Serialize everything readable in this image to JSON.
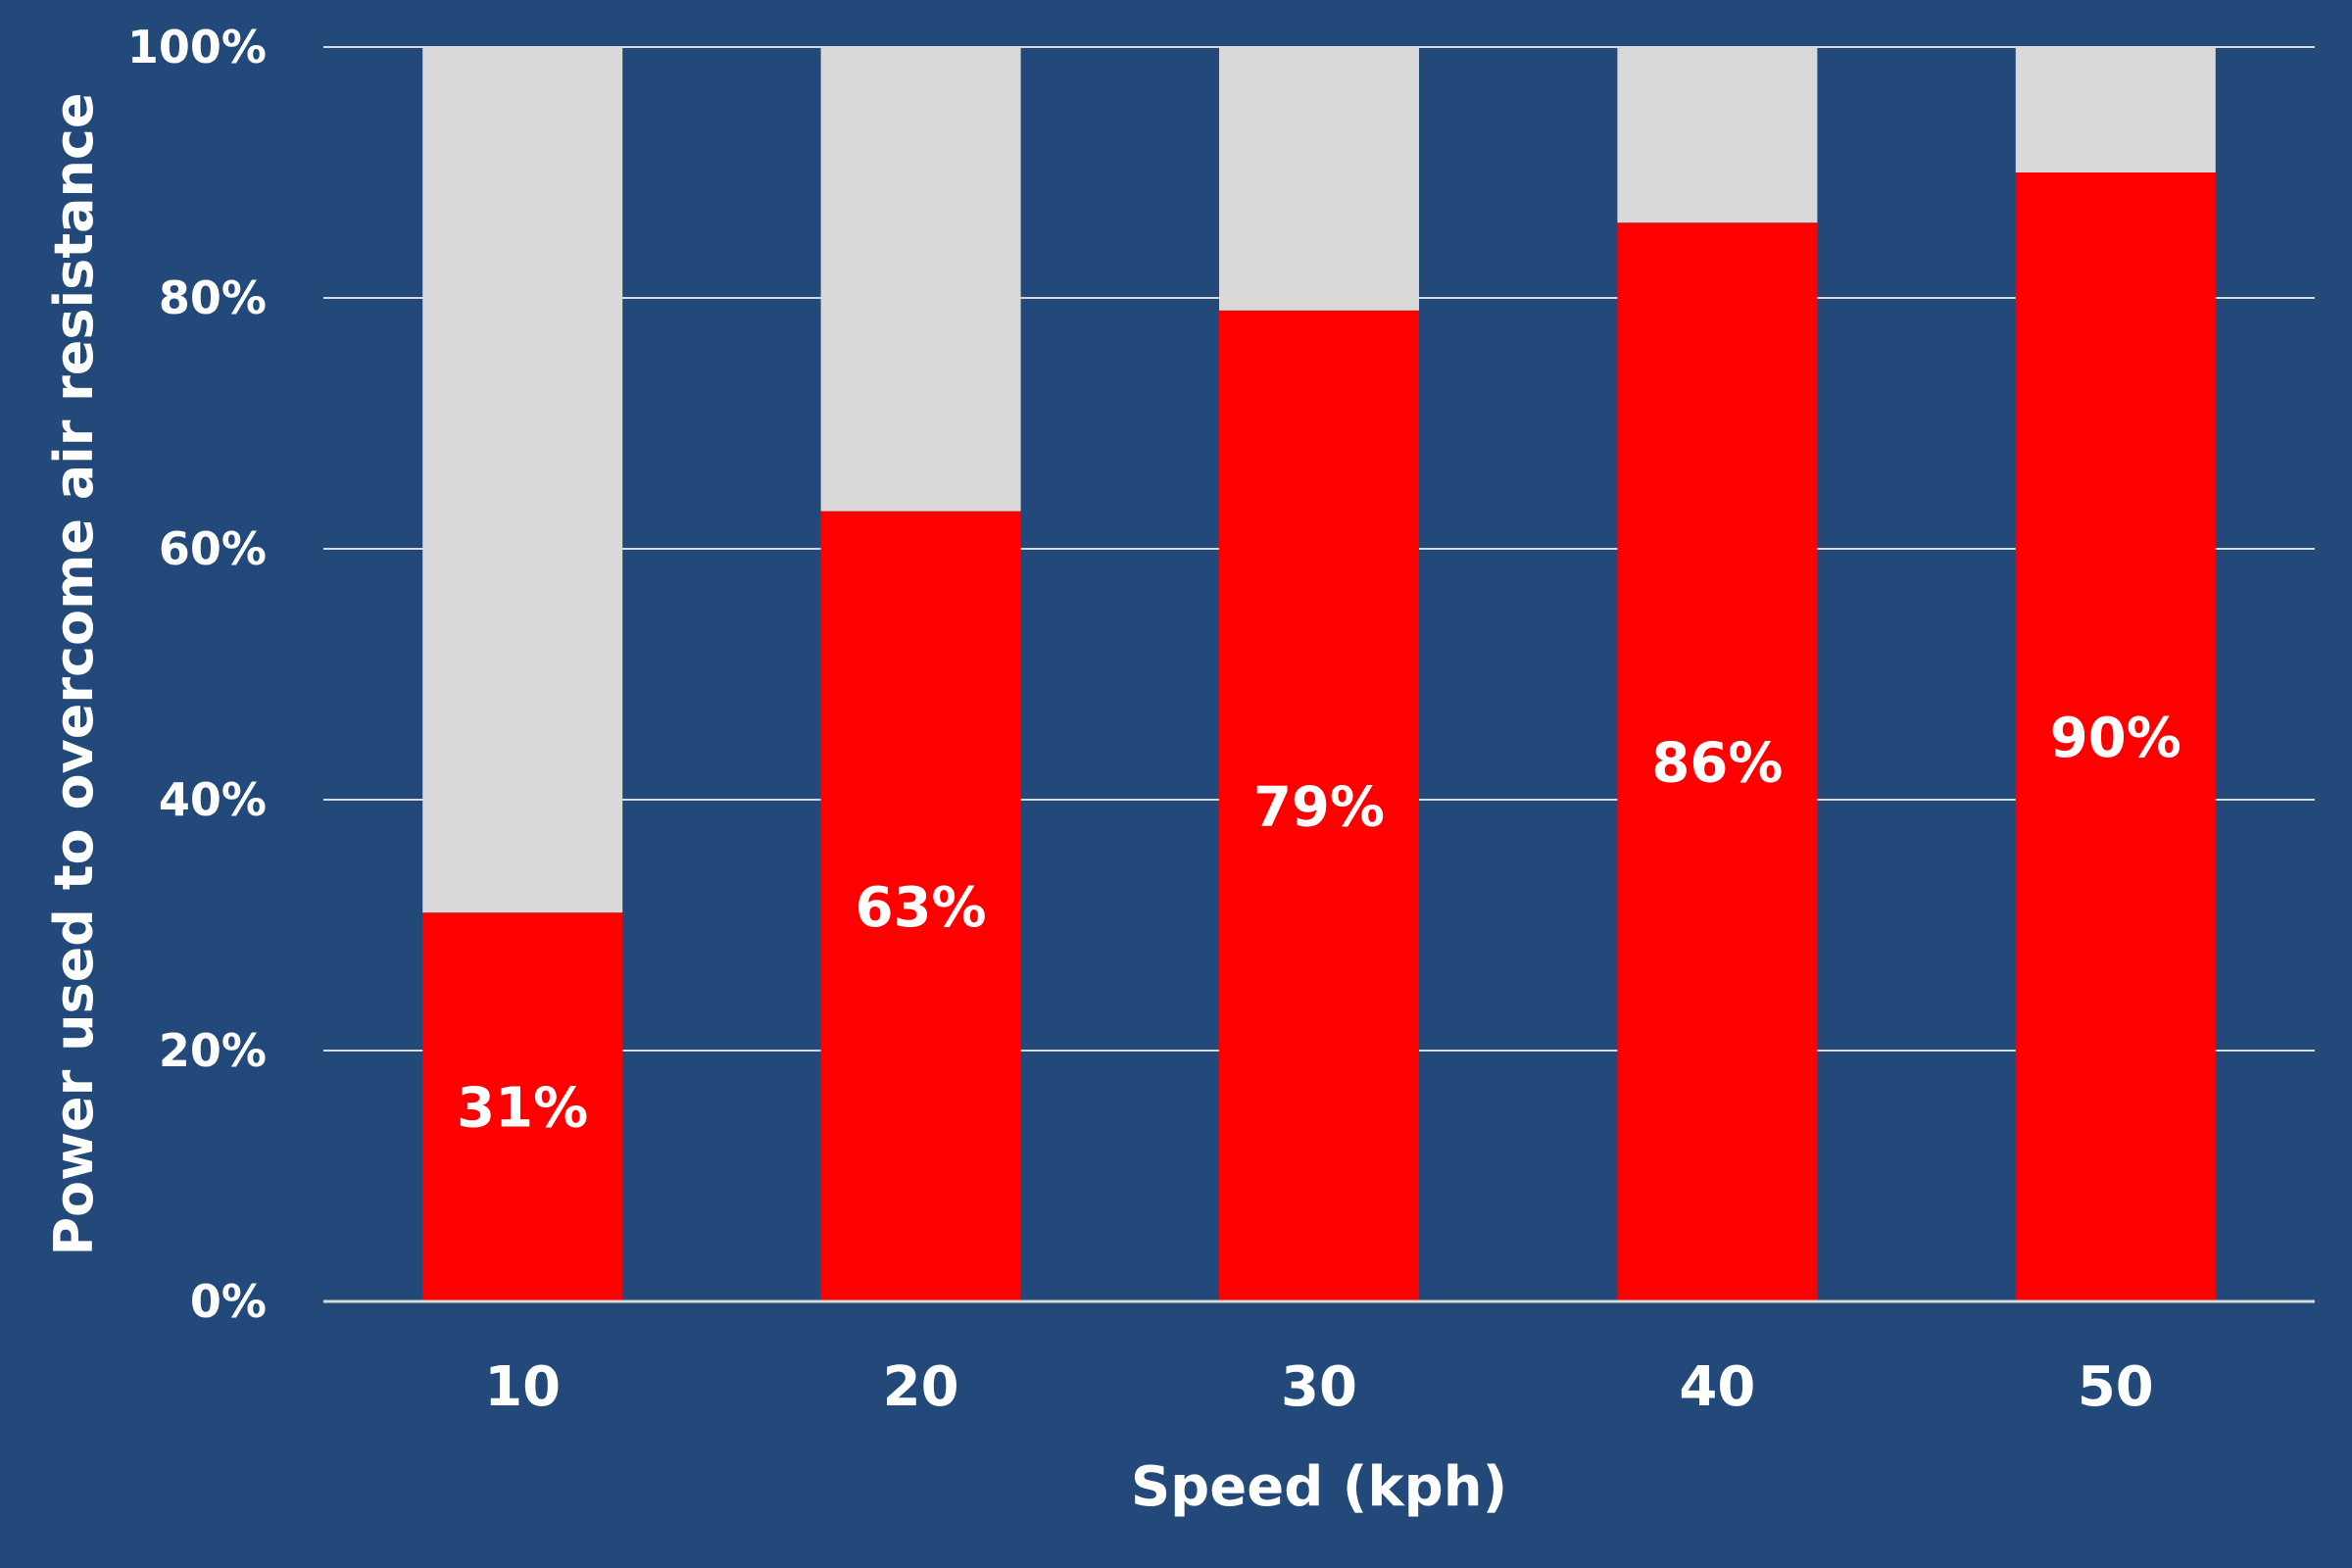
{
  "colors": {
    "background": "#22497a",
    "bar_value": "#ff0000",
    "bar_remainder": "#d9d9d9",
    "gridline": "#d9d9d9",
    "text": "#ffffff"
  },
  "chart_data": {
    "type": "bar",
    "stacked": true,
    "categories": [
      "10",
      "20",
      "30",
      "40",
      "50"
    ],
    "series": [
      {
        "values": [
          31,
          63,
          79,
          86,
          90
        ]
      },
      {
        "values": [
          69,
          37,
          21,
          14,
          10
        ]
      }
    ],
    "data_labels": [
      "31%",
      "63%",
      "79%",
      "86%",
      "90%"
    ],
    "xlabel": "Speed (kph)",
    "ylabel": "Power used to overcome air resistance",
    "ylim": [
      0,
      100
    ],
    "yticks": [
      0,
      20,
      40,
      60,
      80,
      100
    ],
    "ytick_labels": [
      "0%",
      "20%",
      "40%",
      "60%",
      "80%",
      "100%"
    ],
    "grid": true,
    "legend": "none"
  }
}
